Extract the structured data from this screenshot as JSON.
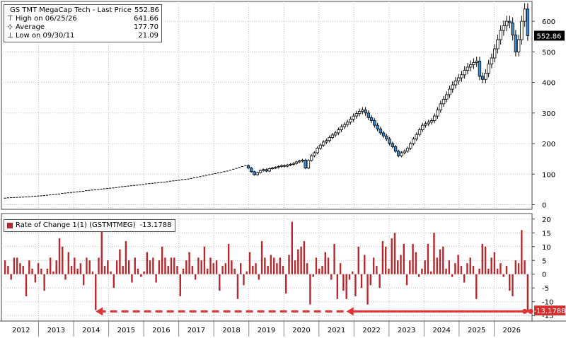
{
  "chart_data": [
    {
      "type": "candlestick",
      "title": "GS TMT MegaCap Tech - Last Price",
      "last_price": 552.86,
      "last_price_label": "552.86",
      "legend": [
        {
          "label": "GS TMT MegaCap Tech - Last Price",
          "value": "552.86"
        },
        {
          "label": "High on 06/25/26",
          "value": "641.66"
        },
        {
          "label": "Average",
          "value": "177.70"
        },
        {
          "label": "Low on 09/30/11",
          "value": "21.09"
        }
      ],
      "y_ticks": [
        0,
        100,
        200,
        300,
        400,
        500,
        600
      ],
      "y_tick_labels": [
        "0",
        "100",
        "200",
        "300",
        "400",
        "500",
        "600"
      ],
      "ylim": [
        -15,
        665
      ],
      "close_series": [
        21.5,
        22.5,
        23,
        23.5,
        24,
        24.5,
        25,
        25.5,
        26,
        27,
        28,
        28.5,
        29,
        30,
        31,
        32,
        33,
        34,
        35,
        37,
        38,
        39,
        40,
        41,
        42,
        43,
        44,
        46,
        47,
        48,
        49,
        50,
        51,
        52,
        53,
        54,
        55,
        56,
        58,
        59,
        60,
        61,
        62,
        63,
        64,
        65,
        66,
        68,
        69,
        70,
        71,
        72,
        73,
        74,
        75,
        77,
        78,
        79,
        80,
        82,
        83,
        84,
        86,
        88,
        90,
        92,
        94,
        96,
        98,
        100,
        102,
        104,
        106,
        108,
        110,
        113,
        116,
        119,
        122,
        125,
        128,
        120,
        108,
        98,
        105,
        112,
        115,
        110,
        118,
        120,
        122,
        125,
        128,
        126,
        130,
        132,
        135,
        140,
        143,
        146,
        120,
        145,
        160,
        170,
        185,
        195,
        205,
        210,
        220,
        228,
        235,
        245,
        255,
        262,
        270,
        280,
        290,
        298,
        305,
        310,
        300,
        285,
        275,
        260,
        248,
        235,
        225,
        215,
        200,
        190,
        175,
        160,
        170,
        175,
        185,
        200,
        215,
        230,
        245,
        260,
        265,
        270,
        275,
        290,
        310,
        330,
        345,
        360,
        378,
        392,
        405,
        415,
        425,
        440,
        450,
        458,
        465,
        470,
        420,
        410,
        430,
        460,
        480,
        510,
        540,
        570,
        585,
        600,
        595,
        555,
        500,
        540,
        600,
        640,
        552.86
      ]
    },
    {
      "type": "bar",
      "title": "Rate of Change 1(1) (GSTMTMEG)",
      "last_value": -13.1788,
      "last_value_label": "-13.1788",
      "legend_label": "Rate of Change 1(1) (GSTMTMEG)",
      "legend_value": "-13.1788",
      "y_ticks": [
        20,
        15,
        10,
        5,
        0,
        -5,
        -10,
        -15
      ],
      "y_tick_labels": [
        "20",
        "15",
        "10",
        "5",
        "0",
        "-5",
        "-10",
        "-15"
      ],
      "ylim": [
        -17,
        22
      ],
      "values": [
        5,
        3,
        -2,
        6,
        6,
        4,
        3,
        -8,
        5,
        2,
        -3,
        4,
        2,
        -6,
        2,
        6,
        1,
        5,
        13,
        10,
        -2,
        8,
        3,
        6,
        2,
        4,
        -4,
        6,
        5,
        1,
        -13,
        6,
        18,
        3,
        5,
        1,
        -5,
        5,
        9,
        3,
        12,
        5,
        -3,
        6,
        2,
        -1,
        1,
        8,
        5,
        6,
        -3,
        5,
        10,
        6,
        3,
        6,
        6,
        3,
        -8,
        2,
        5,
        8,
        3,
        -2,
        6,
        5,
        10,
        2,
        6,
        4,
        5,
        -6,
        3,
        4,
        11,
        5,
        2,
        -9,
        4,
        -4,
        1,
        8,
        3,
        4,
        -2,
        12,
        6,
        3,
        7,
        6,
        4,
        6,
        3,
        -7,
        7,
        19,
        5,
        9,
        10,
        12,
        4,
        -11,
        -1,
        6,
        2,
        3,
        8,
        6,
        -2,
        11,
        -9,
        4,
        -6,
        -9,
        -2,
        1,
        -8,
        10,
        -5,
        7,
        -11,
        -4,
        6,
        3,
        -5,
        12,
        10,
        2,
        13,
        15,
        5,
        7,
        11,
        -4,
        5,
        11,
        8,
        -1,
        2,
        5,
        11,
        1,
        15,
        6,
        9,
        10,
        2,
        5,
        -1,
        4,
        7,
        3,
        -3,
        4,
        6,
        3,
        -9,
        2,
        11,
        10,
        2,
        6,
        8,
        2,
        4,
        -1,
        3,
        -6,
        -8,
        5,
        4,
        16,
        5,
        -13.1788
      ],
      "annotations": [
        {
          "type": "dashed-arrow",
          "from_index": 172,
          "to_index": 30,
          "y": -13.5
        },
        {
          "type": "dashed-arrow",
          "from_index": 174,
          "to_index": 113,
          "y": -13.5
        }
      ]
    }
  ],
  "x_axis": {
    "year_labels": [
      "2012",
      "2013",
      "2014",
      "2015",
      "2016",
      "2017",
      "2018",
      "2019",
      "2020",
      "2021",
      "2022",
      "2023",
      "2024",
      "2025",
      "2026"
    ]
  },
  "colors": {
    "up": "#ffffff",
    "down": "#3b8fd6",
    "thin": "#000000",
    "roc_bar": "#b5292f",
    "roc_highlight": "#c62828",
    "arrow": "#e03232",
    "badge_price": "#000000",
    "badge_roc": "#d32f2f"
  }
}
